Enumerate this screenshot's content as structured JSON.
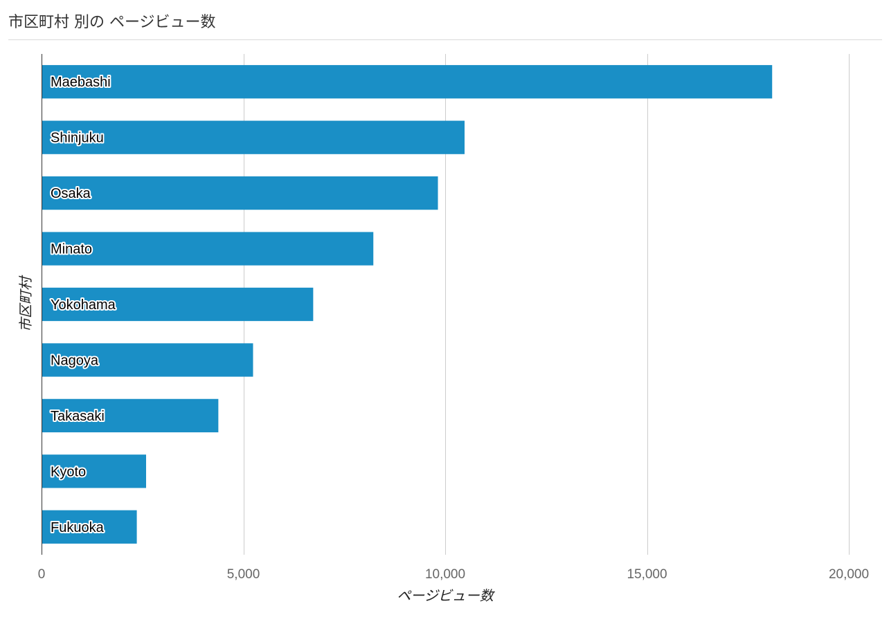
{
  "chart_data": {
    "type": "bar",
    "orientation": "horizontal",
    "title": "市区町村 別の ページビュー数",
    "xlabel": "ページビュー数",
    "ylabel": "市区町村",
    "categories": [
      "Maebashi",
      "Shinjuku",
      "Osaka",
      "Minato",
      "Yokohama",
      "Nagoya",
      "Takasaki",
      "Kyoto",
      "Fukuoka"
    ],
    "values": [
      18100,
      10480,
      9820,
      8220,
      6730,
      5240,
      4380,
      2590,
      2360
    ],
    "xlim": [
      0,
      20000
    ],
    "xticks": [
      0,
      5000,
      10000,
      15000,
      20000
    ],
    "xtick_labels": [
      "0",
      "5,000",
      "10,000",
      "15,000",
      "20,000"
    ],
    "grid": true,
    "legend": "none",
    "bar_color": "#1a8fc6"
  }
}
